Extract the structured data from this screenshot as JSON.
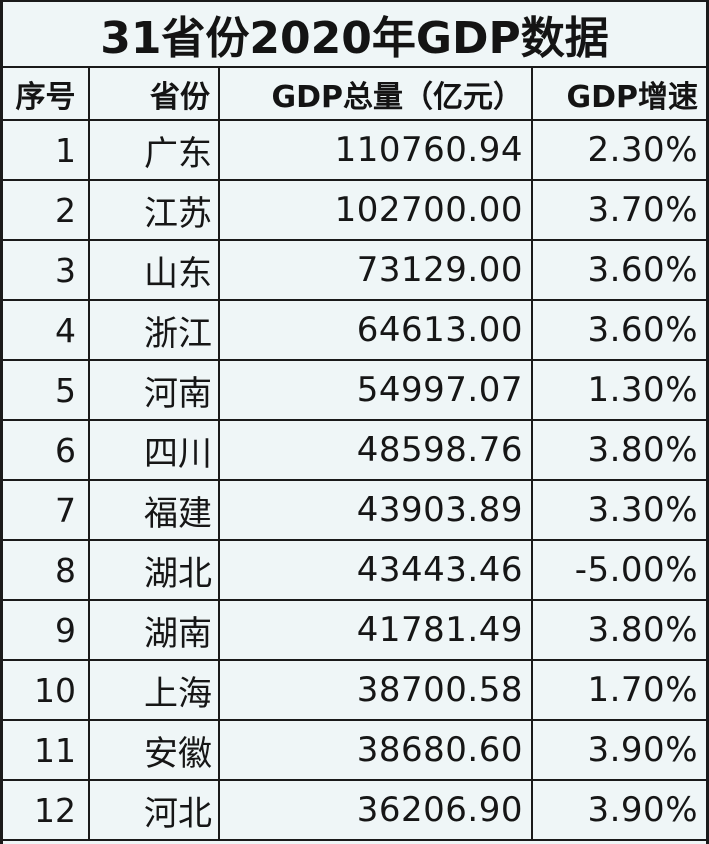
{
  "title": "31省份2020年GDP数据",
  "columns": {
    "index": "序号",
    "province": "省份",
    "gdp": "GDP总量（亿元）",
    "growth": "GDP增速"
  },
  "rows": [
    {
      "index": "1",
      "province": "广东",
      "gdp": "110760.94",
      "growth": "2.30%"
    },
    {
      "index": "2",
      "province": "江苏",
      "gdp": "102700.00",
      "growth": "3.70%"
    },
    {
      "index": "3",
      "province": "山东",
      "gdp": "73129.00",
      "growth": "3.60%"
    },
    {
      "index": "4",
      "province": "浙江",
      "gdp": "64613.00",
      "growth": "3.60%"
    },
    {
      "index": "5",
      "province": "河南",
      "gdp": "54997.07",
      "growth": "1.30%"
    },
    {
      "index": "6",
      "province": "四川",
      "gdp": "48598.76",
      "growth": "3.80%"
    },
    {
      "index": "7",
      "province": "福建",
      "gdp": "43903.89",
      "growth": "3.30%"
    },
    {
      "index": "8",
      "province": "湖北",
      "gdp": "43443.46",
      "growth": "-5.00%"
    },
    {
      "index": "9",
      "province": "湖南",
      "gdp": "41781.49",
      "growth": "3.80%"
    },
    {
      "index": "10",
      "province": "上海",
      "gdp": "38700.58",
      "growth": "1.70%"
    },
    {
      "index": "11",
      "province": "安徽",
      "gdp": "38680.60",
      "growth": "3.90%"
    },
    {
      "index": "12",
      "province": "河北",
      "gdp": "36206.90",
      "growth": "3.90%"
    }
  ]
}
